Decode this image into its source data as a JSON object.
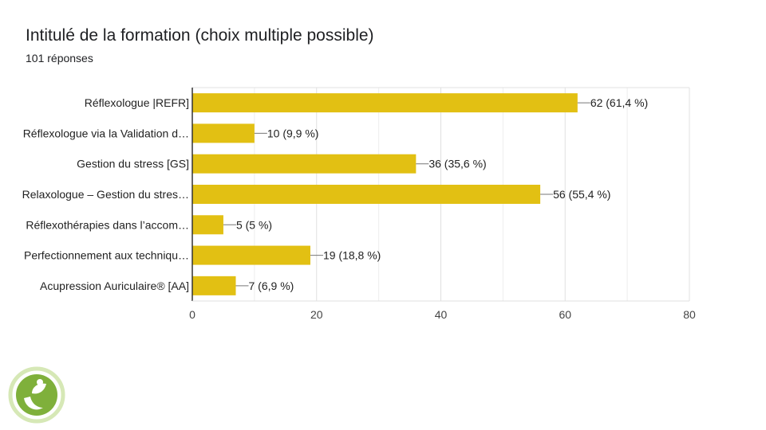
{
  "header": {
    "title": "Intitulé de la formation (choix multiple possible)",
    "subtitle": "101 réponses"
  },
  "colors": {
    "bar": "#E2C013",
    "grid": "#E0E0E0",
    "axis": "#333333",
    "logo_green": "#7FB03B",
    "logo_light": "#D6E8B6"
  },
  "logo": {
    "icon": "leaf-figure-logo"
  },
  "chart_data": {
    "type": "bar",
    "orientation": "horizontal",
    "title": "Intitulé de la formation (choix multiple possible)",
    "subtitle": "101 réponses",
    "categories": [
      "Réflexologue |REFR]",
      "Réflexologue via la Validation d…",
      "Gestion du stress [GS]",
      "Relaxologue – Gestion du stres…",
      "Réflexothérapies dans l’accom…",
      "Perfectionnement aux techniqu…",
      "Acupression Auriculaire® [AA]"
    ],
    "values": [
      62,
      10,
      36,
      56,
      5,
      19,
      7
    ],
    "value_labels": [
      "62 (61,4 %)",
      "10 (9,9 %)",
      "36 (35,6 %)",
      "56 (55,4 %)",
      "5 (5 %)",
      "19 (18,8 %)",
      "7 (6,9 %)"
    ],
    "xlim": [
      0,
      80
    ],
    "xticks": [
      0,
      20,
      40,
      60,
      80
    ],
    "xlabel": "",
    "ylabel": "",
    "grid": true,
    "legend": "none"
  }
}
